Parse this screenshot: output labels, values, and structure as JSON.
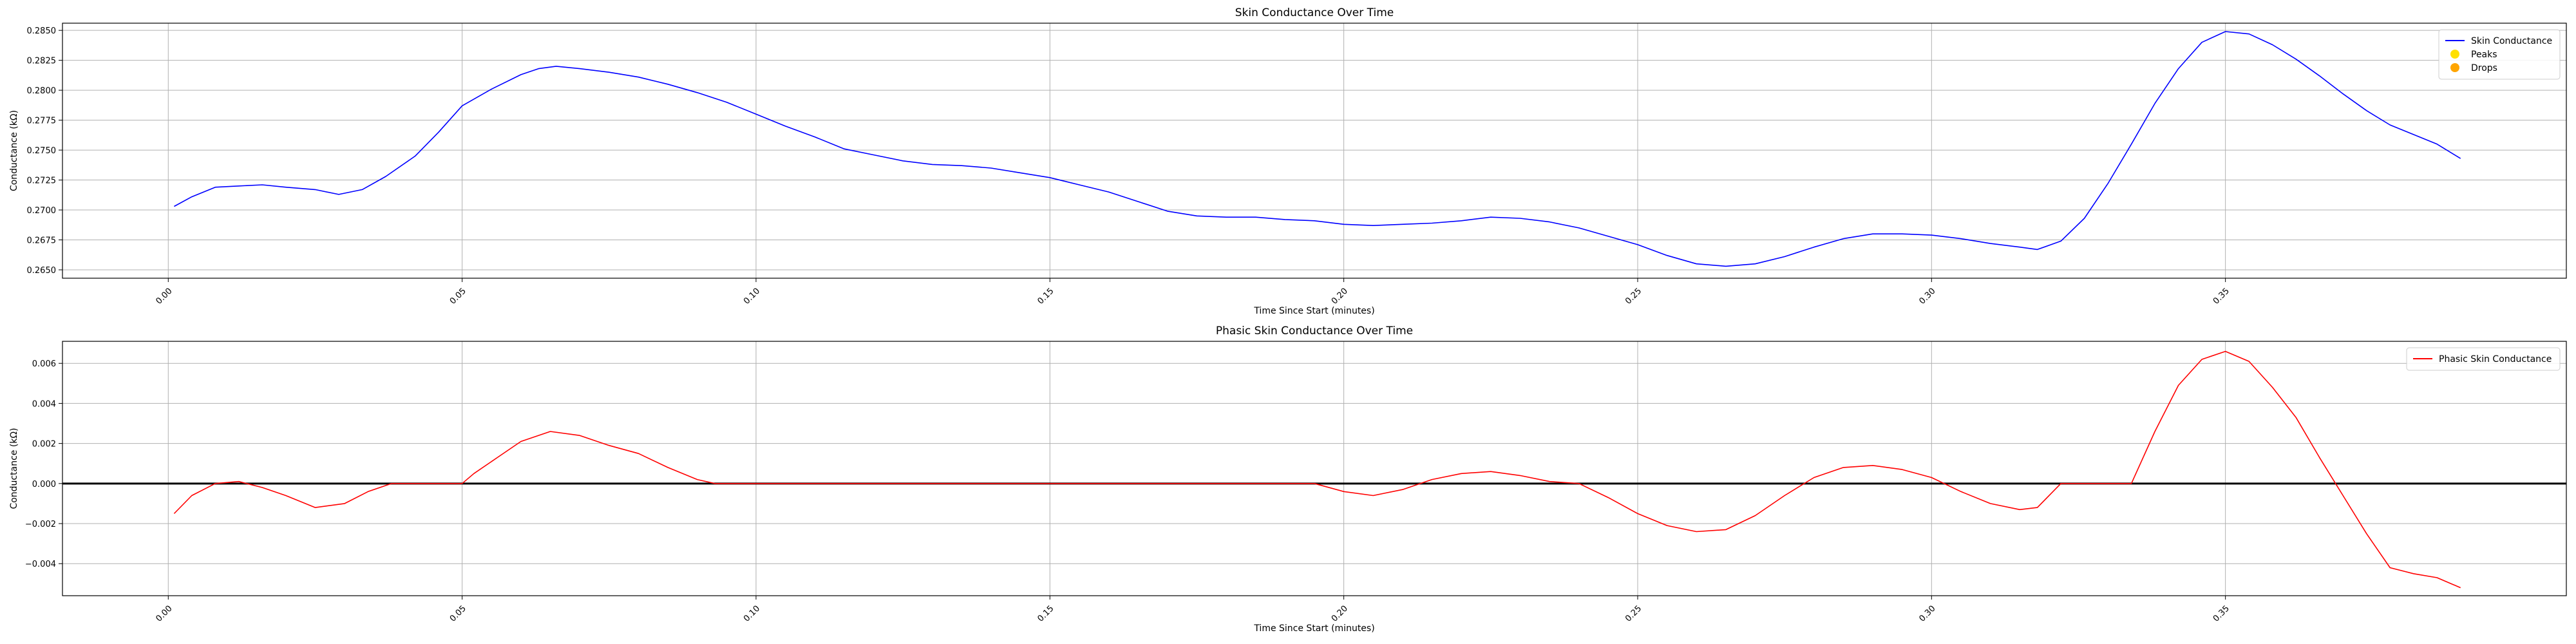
{
  "chart_data": [
    {
      "type": "line",
      "title": "Skin Conductance Over Time",
      "xlabel": "Time Since Start (minutes)",
      "ylabel": "Conductance (kΩ)",
      "xlim": [
        -0.018,
        0.408
      ],
      "ylim": [
        0.2643,
        0.2856
      ],
      "xticks": [
        "0.00",
        "0.05",
        "0.10",
        "0.15",
        "0.20",
        "0.25",
        "0.30",
        "0.35"
      ],
      "yticks": [
        "0.2650",
        "0.2675",
        "0.2700",
        "0.2725",
        "0.2750",
        "0.2775",
        "0.2800",
        "0.2825",
        "0.2850"
      ],
      "grid": true,
      "legend": {
        "position": "top-right",
        "entries": [
          {
            "label": "Skin Conductance",
            "color": "#0000ff",
            "marker": "line"
          },
          {
            "label": "Peaks",
            "color": "#ffe000",
            "marker": "dot"
          },
          {
            "label": "Drops",
            "color": "#ffa500",
            "marker": "dot"
          }
        ]
      },
      "series": [
        {
          "name": "Skin Conductance",
          "color": "#0000ff",
          "x": [
            0.001,
            0.004,
            0.008,
            0.012,
            0.016,
            0.02,
            0.025,
            0.029,
            0.033,
            0.037,
            0.042,
            0.046,
            0.05,
            0.055,
            0.06,
            0.063,
            0.066,
            0.07,
            0.075,
            0.08,
            0.085,
            0.09,
            0.095,
            0.1,
            0.105,
            0.11,
            0.115,
            0.12,
            0.125,
            0.13,
            0.135,
            0.14,
            0.145,
            0.15,
            0.155,
            0.16,
            0.165,
            0.17,
            0.175,
            0.18,
            0.185,
            0.19,
            0.195,
            0.2,
            0.205,
            0.21,
            0.215,
            0.22,
            0.225,
            0.23,
            0.235,
            0.24,
            0.245,
            0.25,
            0.255,
            0.26,
            0.265,
            0.27,
            0.275,
            0.28,
            0.285,
            0.29,
            0.295,
            0.3,
            0.305,
            0.31,
            0.315,
            0.318,
            0.322,
            0.326,
            0.33,
            0.334,
            0.338,
            0.342,
            0.346,
            0.35,
            0.354,
            0.358,
            0.362,
            0.366,
            0.37,
            0.374,
            0.378,
            0.382,
            0.386,
            0.39
          ],
          "y": [
            0.2703,
            0.2711,
            0.2719,
            0.272,
            0.2721,
            0.2719,
            0.2717,
            0.2713,
            0.2717,
            0.2728,
            0.2745,
            0.2765,
            0.2787,
            0.2801,
            0.2813,
            0.2818,
            0.282,
            0.2818,
            0.2815,
            0.2811,
            0.2805,
            0.2798,
            0.279,
            0.278,
            0.277,
            0.2761,
            0.2751,
            0.2746,
            0.2741,
            0.2738,
            0.2737,
            0.2735,
            0.2731,
            0.2727,
            0.2721,
            0.2715,
            0.2707,
            0.2699,
            0.2695,
            0.2694,
            0.2694,
            0.2692,
            0.2691,
            0.2688,
            0.2687,
            0.2688,
            0.2689,
            0.2691,
            0.2694,
            0.2693,
            0.269,
            0.2685,
            0.2678,
            0.2671,
            0.2662,
            0.2655,
            0.2653,
            0.2655,
            0.2661,
            0.2669,
            0.2676,
            0.268,
            0.268,
            0.2679,
            0.2676,
            0.2672,
            0.2669,
            0.2667,
            0.2674,
            0.2693,
            0.2722,
            0.2755,
            0.2789,
            0.2818,
            0.284,
            0.2849,
            0.2847,
            0.2838,
            0.2826,
            0.2812,
            0.2797,
            0.2783,
            0.2771,
            0.2763,
            0.2755,
            0.2743
          ]
        }
      ]
    },
    {
      "type": "line",
      "title": "Phasic Skin Conductance Over Time",
      "xlabel": "Time Since Start (minutes)",
      "ylabel": "Conductance (kΩ)",
      "xlim": [
        -0.018,
        0.408
      ],
      "ylim": [
        -0.0056,
        0.0071
      ],
      "xticks": [
        "0.00",
        "0.05",
        "0.10",
        "0.15",
        "0.20",
        "0.25",
        "0.30",
        "0.35"
      ],
      "yticks": [
        "−0.004",
        "−0.002",
        "0.000",
        "0.002",
        "0.004",
        "0.006"
      ],
      "grid": true,
      "baseline": 0.0,
      "legend": {
        "position": "top-right",
        "entries": [
          {
            "label": "Phasic Skin Conductance",
            "color": "#ff0000",
            "marker": "line"
          }
        ]
      },
      "series": [
        {
          "name": "Phasic Skin Conductance",
          "color": "#ff0000",
          "x": [
            0.001,
            0.004,
            0.008,
            0.012,
            0.016,
            0.02,
            0.025,
            0.03,
            0.034,
            0.038,
            0.042,
            0.05,
            0.052,
            0.056,
            0.06,
            0.065,
            0.07,
            0.075,
            0.08,
            0.085,
            0.09,
            0.093,
            0.1,
            0.12,
            0.14,
            0.16,
            0.18,
            0.195,
            0.2,
            0.205,
            0.21,
            0.215,
            0.22,
            0.225,
            0.23,
            0.235,
            0.24,
            0.245,
            0.25,
            0.255,
            0.26,
            0.265,
            0.27,
            0.275,
            0.28,
            0.285,
            0.29,
            0.295,
            0.3,
            0.305,
            0.31,
            0.315,
            0.318,
            0.322,
            0.334,
            0.338,
            0.342,
            0.346,
            0.35,
            0.354,
            0.358,
            0.362,
            0.366,
            0.37,
            0.374,
            0.378,
            0.382,
            0.386,
            0.39
          ],
          "y": [
            -0.0015,
            -0.0006,
            0.0,
            0.0001,
            -0.0002,
            -0.0006,
            -0.0012,
            -0.001,
            -0.0004,
            0.0,
            0.0,
            0.0,
            0.0005,
            0.0013,
            0.0021,
            0.0026,
            0.0024,
            0.0019,
            0.0015,
            0.0008,
            0.0002,
            0.0,
            0.0,
            0.0,
            0.0,
            0.0,
            0.0,
            0.0,
            -0.0004,
            -0.0006,
            -0.0003,
            0.0002,
            0.0005,
            0.0006,
            0.0004,
            0.0001,
            0.0,
            -0.0007,
            -0.0015,
            -0.0021,
            -0.0024,
            -0.0023,
            -0.0016,
            -0.0006,
            0.0003,
            0.0008,
            0.0009,
            0.0007,
            0.0003,
            -0.0004,
            -0.001,
            -0.0013,
            -0.0012,
            0.0,
            0.0,
            0.0026,
            0.0049,
            0.0062,
            0.0066,
            0.0061,
            0.0048,
            0.0033,
            0.0013,
            -0.0006,
            -0.0025,
            -0.0042,
            -0.0045,
            -0.0047,
            -0.0052
          ]
        }
      ]
    }
  ]
}
